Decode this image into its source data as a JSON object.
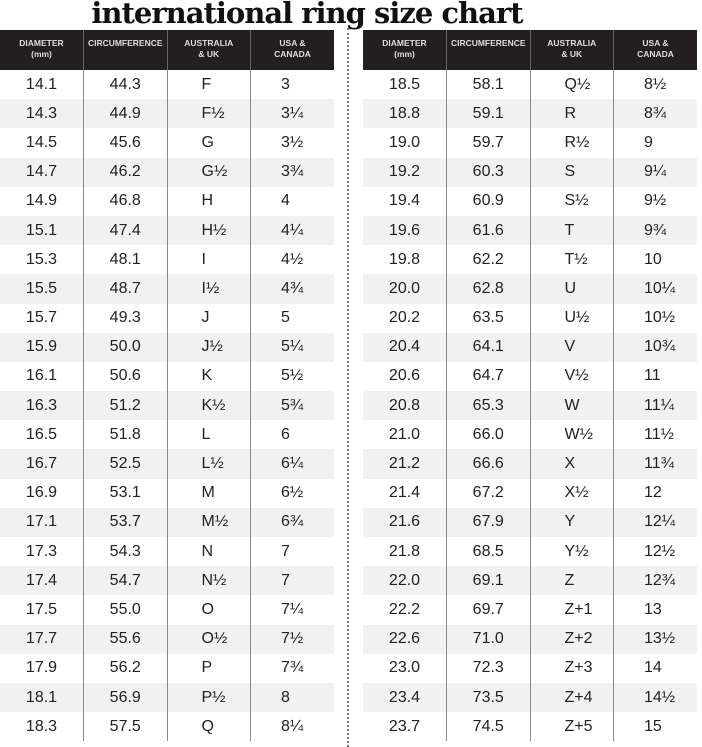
{
  "title": "international ring size chart",
  "headers": [
    "DIAMETER\n(mm)",
    "CIRCUMFERENCE",
    "AUSTRALIA\n& UK",
    "USA &\nCANADA"
  ],
  "tables": [
    {
      "rows": [
        [
          "14.1",
          "44.3",
          "F",
          "3"
        ],
        [
          "14.3",
          "44.9",
          "F½",
          "3¼"
        ],
        [
          "14.5",
          "45.6",
          "G",
          "3½"
        ],
        [
          "14.7",
          "46.2",
          "G½",
          "3¾"
        ],
        [
          "14.9",
          "46.8",
          "H",
          "4"
        ],
        [
          "15.1",
          "47.4",
          "H½",
          "4¼"
        ],
        [
          "15.3",
          "48.1",
          "I",
          "4½"
        ],
        [
          "15.5",
          "48.7",
          "I½",
          "4¾"
        ],
        [
          "15.7",
          "49.3",
          "J",
          "5"
        ],
        [
          "15.9",
          "50.0",
          "J½",
          "5¼"
        ],
        [
          "16.1",
          "50.6",
          "K",
          "5½"
        ],
        [
          "16.3",
          "51.2",
          "K½",
          "5¾"
        ],
        [
          "16.5",
          "51.8",
          "L",
          "6"
        ],
        [
          "16.7",
          "52.5",
          "L½",
          "6¼"
        ],
        [
          "16.9",
          "53.1",
          "M",
          "6½"
        ],
        [
          "17.1",
          "53.7",
          "M½",
          "6¾"
        ],
        [
          "17.3",
          "54.3",
          "N",
          "7"
        ],
        [
          "17.4",
          "54.7",
          "N½",
          "7"
        ],
        [
          "17.5",
          "55.0",
          "O",
          "7¼"
        ],
        [
          "17.7",
          "55.6",
          "O½",
          "7½"
        ],
        [
          "17.9",
          "56.2",
          "P",
          "7¾"
        ],
        [
          "18.1",
          "56.9",
          "P½",
          "8"
        ],
        [
          "18.3",
          "57.5",
          "Q",
          "8¼"
        ]
      ]
    },
    {
      "rows": [
        [
          "18.5",
          "58.1",
          "Q½",
          "8½"
        ],
        [
          "18.8",
          "59.1",
          "R",
          "8¾"
        ],
        [
          "19.0",
          "59.7",
          "R½",
          "9"
        ],
        [
          "19.2",
          "60.3",
          "S",
          "9¼"
        ],
        [
          "19.4",
          "60.9",
          "S½",
          "9½"
        ],
        [
          "19.6",
          "61.6",
          "T",
          "9¾"
        ],
        [
          "19.8",
          "62.2",
          "T½",
          "10"
        ],
        [
          "20.0",
          "62.8",
          "U",
          "10¼"
        ],
        [
          "20.2",
          "63.5",
          "U½",
          "10½"
        ],
        [
          "20.4",
          "64.1",
          "V",
          "10¾"
        ],
        [
          "20.6",
          "64.7",
          "V½",
          "11"
        ],
        [
          "20.8",
          "65.3",
          "W",
          "11¼"
        ],
        [
          "21.0",
          "66.0",
          "W½",
          "11½"
        ],
        [
          "21.2",
          "66.6",
          "X",
          "11¾"
        ],
        [
          "21.4",
          "67.2",
          "X½",
          "12"
        ],
        [
          "21.6",
          "67.9",
          "Y",
          "12¼"
        ],
        [
          "21.8",
          "68.5",
          "Y½",
          "12½"
        ],
        [
          "22.0",
          "69.1",
          "Z",
          "12¾"
        ],
        [
          "22.2",
          "69.7",
          "Z+1",
          "13"
        ],
        [
          "22.6",
          "71.0",
          "Z+2",
          "13½"
        ],
        [
          "23.0",
          "72.3",
          "Z+3",
          "14"
        ],
        [
          "23.4",
          "73.5",
          "Z+4",
          "14½"
        ],
        [
          "23.7",
          "74.5",
          "Z+5",
          "15"
        ]
      ]
    }
  ]
}
